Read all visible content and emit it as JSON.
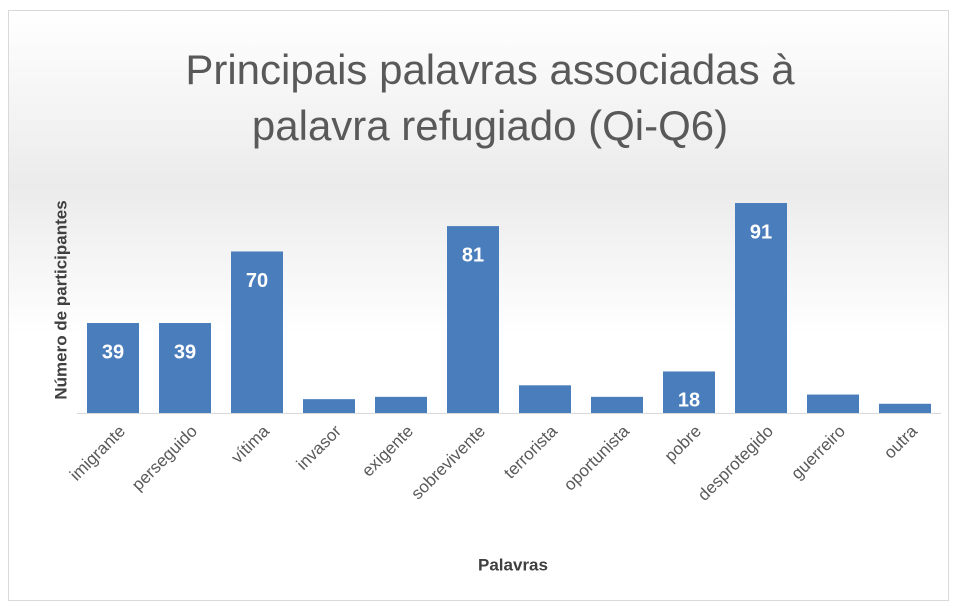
{
  "chart_data": {
    "type": "bar",
    "title": "Principais palavras associadas à palavra refugiado (Qi-Q6)",
    "x_label": "Palavras",
    "y_label": "Número de participantes",
    "categories": [
      "imigrante",
      "perseguido",
      "vítima",
      "invasor",
      "exigente",
      "sobrevivente",
      "terrorista",
      "oportunista",
      "pobre",
      "desprotegido",
      "guerreiro",
      "outra"
    ],
    "values": [
      39,
      39,
      70,
      6,
      7,
      81,
      12,
      7,
      18,
      91,
      8,
      4
    ],
    "color": "#4a7dbb"
  }
}
